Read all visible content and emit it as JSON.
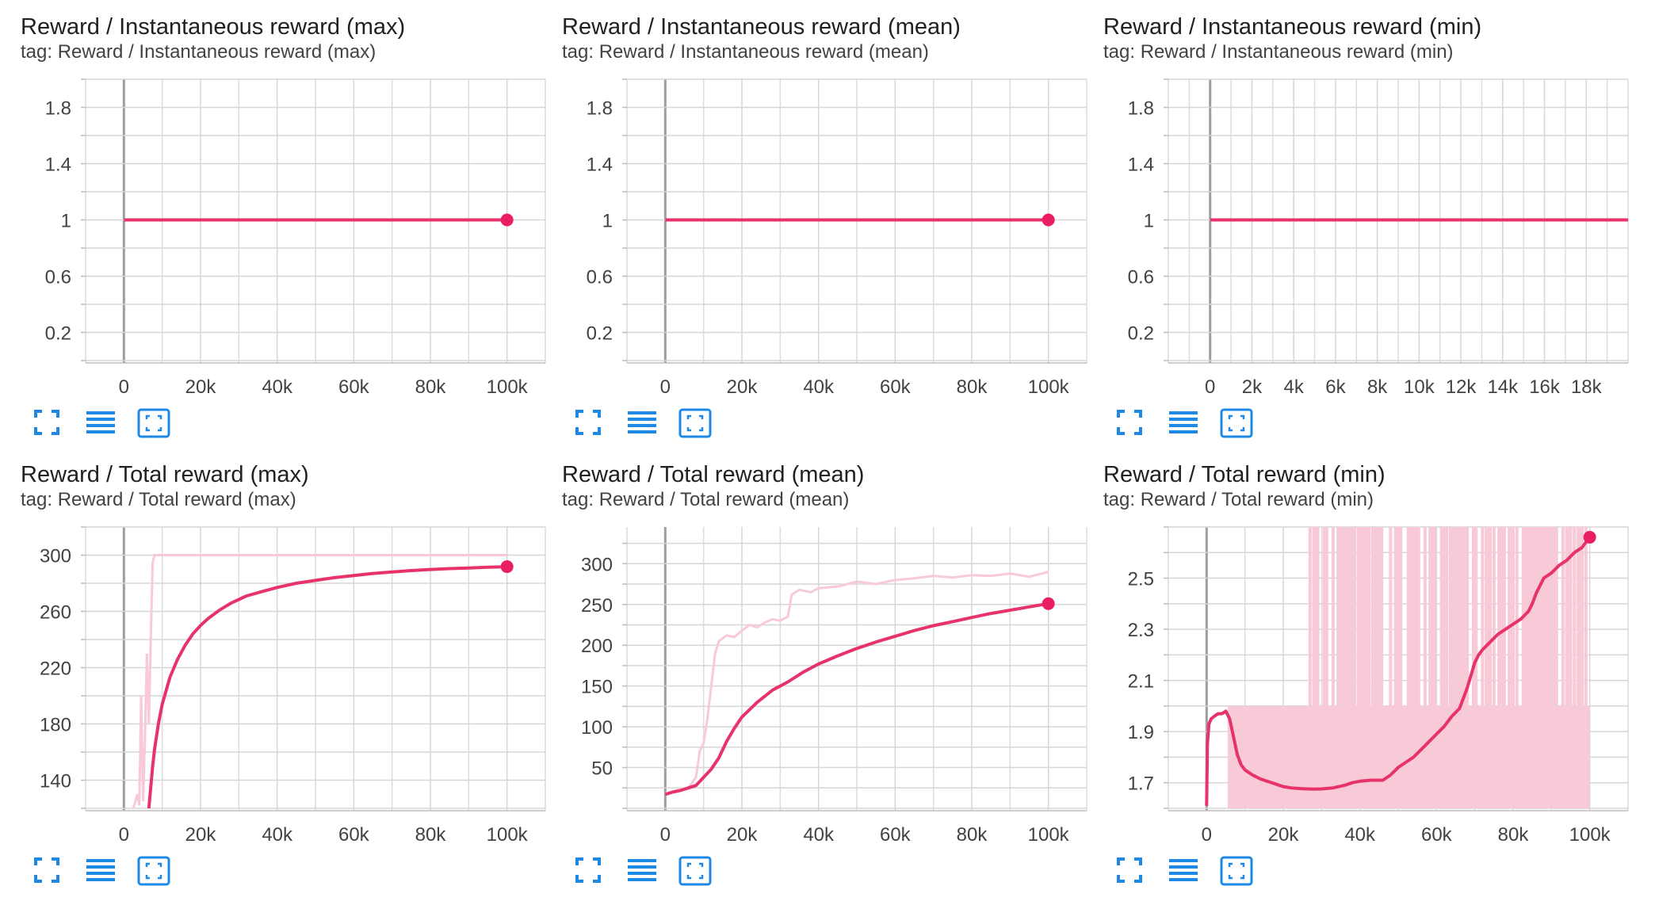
{
  "accent_color": "#e91e63",
  "smoothed_line_color": "#e7336a",
  "raw_line_color": "#f8c9d6",
  "toolbar": {
    "icons": [
      "fullscreen-icon",
      "data-table-icon",
      "fit-domain-icon"
    ]
  },
  "charts": [
    {
      "title": "Reward / Instantaneous reward (max)",
      "tag": "tag: Reward / Instantaneous reward (max)",
      "chart_data": {
        "type": "line",
        "xlim": [
          -10000,
          110000
        ],
        "ylim": [
          0,
          2
        ],
        "xticks": [
          0,
          20000,
          40000,
          60000,
          80000,
          100000
        ],
        "xtick_labels": [
          "0",
          "20k",
          "40k",
          "60k",
          "80k",
          "100k"
        ],
        "yticks": [
          0.2,
          0.6,
          1,
          1.4,
          1.8
        ],
        "ytick_labels": [
          "0.2",
          "0.6",
          "1",
          "1.4",
          "1.8"
        ],
        "grid": true,
        "smoothed": {
          "x": [
            0,
            100000
          ],
          "y": [
            1,
            1
          ]
        },
        "endpoint": {
          "x": 100000,
          "y": 1
        }
      }
    },
    {
      "title": "Reward / Instantaneous reward (mean)",
      "tag": "tag: Reward / Instantaneous reward (mean)",
      "chart_data": {
        "type": "line",
        "xlim": [
          -10000,
          110000
        ],
        "ylim": [
          0,
          2
        ],
        "xticks": [
          0,
          20000,
          40000,
          60000,
          80000,
          100000
        ],
        "xtick_labels": [
          "0",
          "20k",
          "40k",
          "60k",
          "80k",
          "100k"
        ],
        "yticks": [
          0.2,
          0.6,
          1,
          1.4,
          1.8
        ],
        "ytick_labels": [
          "0.2",
          "0.6",
          "1",
          "1.4",
          "1.8"
        ],
        "grid": true,
        "smoothed": {
          "x": [
            0,
            100000
          ],
          "y": [
            1,
            1
          ]
        },
        "endpoint": {
          "x": 100000,
          "y": 1
        }
      }
    },
    {
      "title": "Reward / Instantaneous reward (min)",
      "tag": "tag: Reward / Instantaneous reward (min)",
      "chart_data": {
        "type": "line",
        "xlim": [
          -2000,
          20000
        ],
        "ylim": [
          0,
          2
        ],
        "xticks": [
          0,
          2000,
          4000,
          6000,
          8000,
          10000,
          12000,
          14000,
          16000,
          18000
        ],
        "xtick_labels": [
          "0",
          "2k",
          "4k",
          "6k",
          "8k",
          "10k",
          "12k",
          "14k",
          "16k",
          "18k"
        ],
        "yticks": [
          0.2,
          0.6,
          1,
          1.4,
          1.8
        ],
        "ytick_labels": [
          "0.2",
          "0.6",
          "1",
          "1.4",
          "1.8"
        ],
        "grid": true,
        "smoothed": {
          "x": [
            0,
            20000
          ],
          "y": [
            1,
            1
          ]
        }
      }
    },
    {
      "title": "Reward / Total reward (max)",
      "tag": "tag: Reward / Total reward (max)",
      "chart_data": {
        "type": "line",
        "xlim": [
          -10000,
          110000
        ],
        "ylim": [
          120,
          320
        ],
        "xticks": [
          0,
          20000,
          40000,
          60000,
          80000,
          100000
        ],
        "xtick_labels": [
          "0",
          "20k",
          "40k",
          "60k",
          "80k",
          "100k"
        ],
        "yticks": [
          140,
          180,
          220,
          260,
          300
        ],
        "ytick_labels": [
          "140",
          "180",
          "220",
          "260",
          "300"
        ],
        "grid": true,
        "raw": {
          "x": [
            2500,
            3500,
            4000,
            4500,
            5000,
            5500,
            6000,
            6500,
            7000,
            7500,
            8000,
            100000
          ],
          "y": [
            120,
            130,
            122,
            200,
            125,
            170,
            230,
            180,
            240,
            295,
            300,
            300
          ]
        },
        "smoothed": {
          "x": [
            6500,
            7000,
            7500,
            8000,
            9000,
            10000,
            12000,
            14000,
            16000,
            18000,
            20000,
            22000,
            25000,
            28000,
            32000,
            36000,
            40000,
            45000,
            50000,
            55000,
            60000,
            65000,
            70000,
            75000,
            80000,
            85000,
            90000,
            95000,
            100000
          ],
          "y": [
            120,
            135,
            150,
            162,
            180,
            194,
            213,
            226,
            236,
            244,
            250,
            255,
            261,
            266,
            271,
            274,
            277,
            280,
            282,
            284,
            285.5,
            287,
            288,
            289,
            289.8,
            290.4,
            290.9,
            291.4,
            291.8
          ]
        },
        "endpoint": {
          "x": 100000,
          "y": 291.8
        }
      }
    },
    {
      "title": "Reward / Total reward (mean)",
      "tag": "tag: Reward / Total reward (mean)",
      "chart_data": {
        "type": "line",
        "xlim": [
          -10000,
          110000
        ],
        "ylim": [
          0,
          345
        ],
        "xticks": [
          0,
          20000,
          40000,
          60000,
          80000,
          100000
        ],
        "xtick_labels": [
          "0",
          "20k",
          "40k",
          "60k",
          "80k",
          "100k"
        ],
        "yticks": [
          50,
          100,
          150,
          200,
          250,
          300
        ],
        "ytick_labels": [
          "50",
          "100",
          "150",
          "200",
          "250",
          "300"
        ],
        "grid": true,
        "raw": {
          "x": [
            0,
            3000,
            6000,
            8000,
            9000,
            10000,
            11000,
            12000,
            13000,
            14000,
            16000,
            18000,
            20000,
            22000,
            24000,
            26000,
            28000,
            30000,
            32000,
            33000,
            35000,
            38000,
            40000,
            45000,
            50000,
            55000,
            60000,
            65000,
            70000,
            75000,
            80000,
            85000,
            90000,
            95000,
            100000
          ],
          "y": [
            18,
            22,
            25,
            38,
            70,
            80,
            110,
            150,
            190,
            205,
            212,
            210,
            218,
            225,
            222,
            228,
            232,
            230,
            235,
            262,
            268,
            265,
            270,
            272,
            278,
            275,
            280,
            282,
            285,
            283,
            286,
            285,
            288,
            284,
            290
          ]
        },
        "smoothed": {
          "x": [
            0,
            2000,
            4000,
            6000,
            8000,
            10000,
            12000,
            14000,
            16000,
            18000,
            20000,
            24000,
            28000,
            32000,
            36000,
            40000,
            45000,
            50000,
            55000,
            60000,
            65000,
            70000,
            75000,
            80000,
            85000,
            90000,
            95000,
            100000
          ],
          "y": [
            17,
            20,
            22,
            25,
            28,
            38,
            48,
            62,
            82,
            98,
            112,
            130,
            145,
            155,
            167,
            177,
            187,
            196,
            204,
            211,
            218,
            224,
            229,
            234,
            239,
            243,
            247,
            251
          ]
        },
        "endpoint": {
          "x": 100000,
          "y": 251
        }
      }
    },
    {
      "title": "Reward / Total reward (min)",
      "tag": "tag: Reward / Total reward (min)",
      "chart_data": {
        "type": "line",
        "xlim": [
          -10000,
          110000
        ],
        "ylim": [
          1.6,
          2.7
        ],
        "xticks": [
          0,
          20000,
          40000,
          60000,
          80000,
          100000
        ],
        "xtick_labels": [
          "0",
          "20k",
          "40k",
          "60k",
          "80k",
          "100k"
        ],
        "yticks": [
          1.7,
          1.9,
          2.1,
          2.3,
          2.5
        ],
        "ytick_labels": [
          "1.7",
          "1.9",
          "2.1",
          "2.3",
          "2.5"
        ],
        "grid": true,
        "raw_band": {
          "x0": 5500,
          "x1": 100000,
          "ylow": 1.6,
          "yhigh": 2.0
        },
        "raw_spikes": [
          27000,
          28500,
          31000,
          33000,
          35000,
          36500,
          38000,
          40000,
          41500,
          44000,
          45500,
          48000,
          50000,
          53500,
          55000,
          57000,
          59000,
          62000,
          64000,
          65500,
          67500,
          70000,
          72000,
          73500,
          75000,
          77000,
          79500,
          81000,
          83500,
          85000,
          86500,
          88000,
          89500,
          91000,
          93000,
          94500,
          96000,
          97500,
          99000
        ],
        "smoothed": {
          "x": [
            0,
            200,
            600,
            1200,
            2000,
            3000,
            4000,
            5000,
            6000,
            7000,
            8000,
            9000,
            10000,
            12000,
            14000,
            16000,
            18000,
            20000,
            22000,
            25000,
            28000,
            30000,
            33000,
            36000,
            38000,
            40000,
            43000,
            46000,
            48000,
            50000,
            52000,
            54000,
            56000,
            58000,
            60000,
            62000,
            64000,
            66000,
            67000,
            68000,
            69000,
            70000,
            71000,
            72000,
            74000,
            76000,
            78000,
            80000,
            82000,
            84000,
            85000,
            86000,
            87000,
            88000,
            90000,
            92000,
            94000,
            96000,
            98000,
            100000
          ],
          "y": [
            1.61,
            1.85,
            1.93,
            1.95,
            1.96,
            1.97,
            1.97,
            1.98,
            1.95,
            1.88,
            1.81,
            1.77,
            1.75,
            1.73,
            1.715,
            1.705,
            1.695,
            1.685,
            1.68,
            1.677,
            1.675,
            1.676,
            1.68,
            1.69,
            1.7,
            1.706,
            1.71,
            1.71,
            1.73,
            1.76,
            1.78,
            1.8,
            1.83,
            1.86,
            1.89,
            1.92,
            1.96,
            1.99,
            2.03,
            2.07,
            2.12,
            2.17,
            2.2,
            2.22,
            2.25,
            2.28,
            2.3,
            2.32,
            2.34,
            2.37,
            2.4,
            2.44,
            2.47,
            2.5,
            2.52,
            2.55,
            2.57,
            2.6,
            2.62,
            2.66
          ]
        },
        "endpoint": {
          "x": 100000,
          "y": 2.66
        }
      }
    }
  ]
}
